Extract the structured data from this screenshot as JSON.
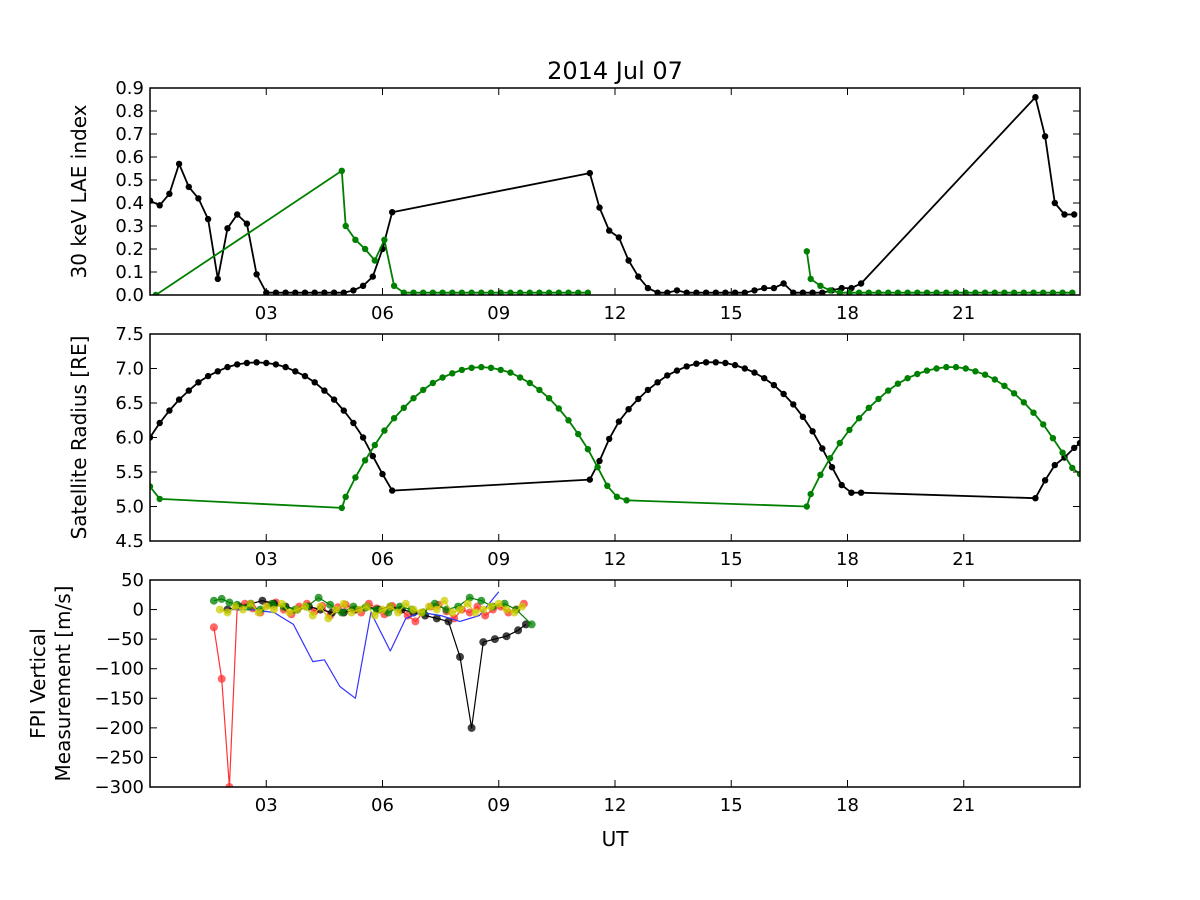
{
  "figure_title": "2014 Jul 07",
  "xlabel": "UT",
  "chart_data": [
    {
      "type": "line",
      "title": "2014 Jul 07",
      "xlabel": "",
      "ylabel": "30 keV LAE index",
      "xlim": [
        0,
        24
      ],
      "ylim": [
        0,
        0.9
      ],
      "grid": false,
      "x_ticks": [
        "03",
        "06",
        "09",
        "12",
        "15",
        "18",
        "21"
      ],
      "y_ticks": [
        "0.0",
        "0.1",
        "0.2",
        "0.3",
        "0.4",
        "0.5",
        "0.6",
        "0.7",
        "0.8",
        "0.9"
      ],
      "series": [
        {
          "color": "#000000",
          "markers": true,
          "x": [
            0.0,
            0.25,
            0.5,
            0.75,
            1.0,
            1.25,
            1.5,
            1.75,
            2.0,
            2.25,
            2.5,
            2.75,
            3.0,
            3.25,
            3.5,
            3.75,
            4.0,
            4.25,
            4.5,
            4.75,
            5.0,
            5.25,
            5.5,
            5.75,
            6.0,
            6.25,
            11.35,
            11.6,
            11.85,
            12.1,
            12.35,
            12.6,
            12.85,
            13.1,
            13.35,
            13.6,
            13.85,
            14.1,
            14.35,
            14.6,
            14.85,
            15.1,
            15.35,
            15.6,
            15.85,
            16.1,
            16.35,
            16.6,
            16.85,
            17.1,
            17.35,
            17.6,
            17.85,
            18.1,
            18.35,
            22.85,
            23.1,
            23.35,
            23.6,
            23.85
          ],
          "y": [
            0.41,
            0.39,
            0.44,
            0.57,
            0.47,
            0.42,
            0.33,
            0.07,
            0.29,
            0.35,
            0.31,
            0.09,
            0.01,
            0.01,
            0.01,
            0.01,
            0.01,
            0.01,
            0.01,
            0.01,
            0.01,
            0.02,
            0.04,
            0.08,
            0.2,
            0.36,
            0.53,
            0.38,
            0.28,
            0.25,
            0.15,
            0.08,
            0.03,
            0.01,
            0.01,
            0.02,
            0.01,
            0.01,
            0.01,
            0.01,
            0.01,
            0.01,
            0.01,
            0.02,
            0.03,
            0.03,
            0.05,
            0.01,
            0.01,
            0.01,
            0.01,
            0.02,
            0.03,
            0.03,
            0.05,
            0.86,
            0.69,
            0.4,
            0.35,
            0.35
          ]
        },
        {
          "color": "#008000",
          "markers": true,
          "x": [
            0.15,
            4.95,
            5.05,
            5.3,
            5.55,
            5.8,
            6.05,
            6.3,
            6.55,
            6.8,
            7.05,
            7.3,
            7.55,
            7.8,
            8.05,
            8.3,
            8.55,
            8.8,
            9.05,
            9.3,
            9.55,
            9.8,
            10.05,
            10.3,
            10.55,
            10.8,
            11.05,
            11.3
          ],
          "y": [
            0.0,
            0.54,
            0.3,
            0.24,
            0.2,
            0.15,
            0.24,
            0.04,
            0.01,
            0.01,
            0.01,
            0.01,
            0.01,
            0.01,
            0.01,
            0.01,
            0.01,
            0.01,
            0.01,
            0.01,
            0.01,
            0.01,
            0.01,
            0.01,
            0.01,
            0.01,
            0.01,
            0.01
          ]
        },
        {
          "color": "#008000",
          "markers": true,
          "x": [
            16.95,
            17.05,
            17.3,
            17.55,
            17.8,
            18.05,
            18.3,
            18.55,
            18.8,
            19.05,
            19.3,
            19.55,
            19.8,
            20.05,
            20.3,
            20.55,
            20.8,
            21.05,
            21.3,
            21.55,
            21.8,
            22.05,
            22.3,
            22.55,
            22.8,
            23.05,
            23.3,
            23.55,
            23.8
          ],
          "y": [
            0.19,
            0.07,
            0.04,
            0.02,
            0.01,
            0.01,
            0.01,
            0.01,
            0.01,
            0.01,
            0.01,
            0.01,
            0.01,
            0.01,
            0.01,
            0.01,
            0.01,
            0.01,
            0.01,
            0.01,
            0.01,
            0.01,
            0.01,
            0.01,
            0.01,
            0.01,
            0.01,
            0.01,
            0.01
          ]
        }
      ]
    },
    {
      "type": "line",
      "title": "",
      "xlabel": "",
      "ylabel": "Satellite Radius [RE]",
      "xlim": [
        0,
        24
      ],
      "ylim": [
        4.5,
        7.5
      ],
      "grid": false,
      "x_ticks": [
        "03",
        "06",
        "09",
        "12",
        "15",
        "18",
        "21"
      ],
      "y_ticks": [
        "4.5",
        "5.0",
        "5.5",
        "6.0",
        "6.5",
        "7.0",
        "7.5"
      ],
      "series": [
        {
          "color": "#000000",
          "markers": true,
          "x": [
            0.0,
            0.25,
            0.5,
            0.75,
            1.0,
            1.25,
            1.5,
            1.75,
            2.0,
            2.25,
            2.5,
            2.75,
            3.0,
            3.25,
            3.5,
            3.75,
            4.0,
            4.25,
            4.5,
            4.75,
            5.0,
            5.25,
            5.5,
            5.75,
            6.0,
            6.25,
            11.35,
            11.6,
            11.85,
            12.1,
            12.35,
            12.6,
            12.85,
            13.1,
            13.35,
            13.6,
            13.85,
            14.1,
            14.35,
            14.6,
            14.85,
            15.1,
            15.35,
            15.6,
            15.85,
            16.1,
            16.35,
            16.6,
            16.85,
            17.1,
            17.35,
            17.6,
            17.85,
            18.1,
            18.35,
            22.85,
            23.1,
            23.35,
            23.6,
            23.85,
            24.0
          ],
          "y": [
            6.0,
            6.21,
            6.39,
            6.55,
            6.68,
            6.8,
            6.89,
            6.96,
            7.02,
            7.06,
            7.08,
            7.09,
            7.08,
            7.06,
            7.02,
            6.96,
            6.89,
            6.8,
            6.68,
            6.55,
            6.39,
            6.21,
            6.0,
            5.73,
            5.47,
            5.23,
            5.39,
            5.66,
            5.98,
            6.23,
            6.41,
            6.56,
            6.69,
            6.8,
            6.9,
            6.97,
            7.03,
            7.07,
            7.09,
            7.09,
            7.08,
            7.05,
            7.0,
            6.94,
            6.86,
            6.76,
            6.63,
            6.48,
            6.3,
            6.09,
            5.84,
            5.57,
            5.31,
            5.2,
            5.2,
            5.12,
            5.38,
            5.6,
            5.71,
            5.85,
            5.92
          ]
        },
        {
          "color": "#008000",
          "markers": true,
          "x": [
            0.0,
            0.25,
            4.95,
            5.05,
            5.3,
            5.55,
            5.8,
            6.05,
            6.3,
            6.55,
            6.8,
            7.05,
            7.3,
            7.55,
            7.8,
            8.05,
            8.3,
            8.55,
            8.8,
            9.05,
            9.3,
            9.55,
            9.8,
            10.05,
            10.3,
            10.55,
            10.8,
            11.05,
            11.3,
            11.55,
            11.8,
            12.05,
            12.3,
            16.95,
            17.05,
            17.3,
            17.55,
            17.8,
            18.05,
            18.3,
            18.55,
            18.8,
            19.05,
            19.3,
            19.55,
            19.8,
            20.05,
            20.3,
            20.55,
            20.8,
            21.05,
            21.3,
            21.55,
            21.8,
            22.05,
            22.3,
            22.55,
            22.8,
            23.05,
            23.3,
            23.55,
            23.8,
            24.0
          ],
          "y": [
            5.29,
            5.11,
            4.98,
            5.14,
            5.42,
            5.67,
            5.89,
            6.1,
            6.28,
            6.43,
            6.57,
            6.69,
            6.79,
            6.87,
            6.93,
            6.98,
            7.01,
            7.02,
            7.01,
            6.98,
            6.94,
            6.87,
            6.79,
            6.69,
            6.57,
            6.42,
            6.25,
            6.05,
            5.83,
            5.57,
            5.3,
            5.14,
            5.09,
            5.0,
            5.18,
            5.46,
            5.7,
            5.92,
            6.11,
            6.28,
            6.43,
            6.56,
            6.68,
            6.78,
            6.86,
            6.92,
            6.97,
            7.0,
            7.02,
            7.02,
            7.0,
            6.96,
            6.91,
            6.84,
            6.75,
            6.64,
            6.51,
            6.36,
            6.19,
            5.99,
            5.78,
            5.56,
            5.47
          ]
        }
      ]
    },
    {
      "type": "line",
      "title": "",
      "xlabel": "UT",
      "ylabel": "FPI Vertical Measurement [m/s]",
      "xlim": [
        0,
        24
      ],
      "ylim": [
        -300,
        50
      ],
      "grid": false,
      "x_ticks": [
        "03",
        "06",
        "09",
        "12",
        "15",
        "18",
        "21"
      ],
      "y_ticks": [
        "−300",
        "−250",
        "−200",
        "−150",
        "−100",
        "−50",
        "0",
        "50"
      ],
      "series": [
        {
          "color": "#ff3333",
          "markers": true,
          "x": [
            1.65,
            1.85,
            2.05,
            2.25,
            2.45,
            2.65,
            2.85,
            3.05,
            3.25,
            3.45,
            3.65,
            3.85,
            4.05,
            4.25,
            4.45,
            4.65,
            4.85,
            5.05,
            5.25,
            5.45,
            5.65,
            5.85,
            6.05,
            6.25,
            6.45,
            6.65,
            6.85,
            7.05,
            7.25,
            7.45,
            7.65,
            7.85,
            8.05,
            8.25,
            8.45,
            8.65,
            8.85,
            9.05,
            9.25,
            9.45,
            9.65
          ],
          "y": [
            -30,
            -117,
            -300,
            5,
            10,
            2,
            -5,
            8,
            12,
            0,
            -8,
            5,
            10,
            -3,
            6,
            -10,
            4,
            8,
            0,
            -5,
            10,
            2,
            -8,
            6,
            0,
            -10,
            -20,
            -5,
            5,
            8,
            -3,
            -15,
            0,
            -5,
            5,
            -10,
            0,
            5,
            -5,
            0,
            10
          ]
        },
        {
          "color": "#000000",
          "markers": true,
          "x": [
            2.0,
            2.3,
            2.6,
            2.9,
            3.2,
            3.5,
            3.8,
            4.1,
            4.4,
            4.7,
            5.0,
            5.3,
            5.6,
            5.9,
            6.2,
            6.5,
            6.8,
            7.1,
            7.4,
            7.7,
            8.0,
            8.3,
            8.6,
            8.9,
            9.2,
            9.5,
            9.7
          ],
          "y": [
            0,
            5,
            10,
            15,
            10,
            5,
            0,
            5,
            0,
            -5,
            -5,
            0,
            5,
            0,
            5,
            0,
            -5,
            -10,
            -15,
            -20,
            -80,
            -200,
            -55,
            -50,
            -45,
            -35,
            -25
          ]
        },
        {
          "color": "#3333ff",
          "markers": false,
          "x": [
            2.0,
            2.6,
            3.2,
            3.7,
            4.2,
            4.5,
            4.9,
            5.3,
            5.7,
            6.2,
            6.6,
            7.0,
            7.5,
            8.0,
            8.5,
            9.0
          ],
          "y": [
            0,
            0,
            -5,
            -25,
            -88,
            -85,
            -130,
            -150,
            -5,
            -70,
            -15,
            -5,
            -10,
            -20,
            -10,
            30
          ]
        },
        {
          "color": "#008000",
          "markers": true,
          "x": [
            1.65,
            1.85,
            2.05,
            2.25,
            2.55,
            2.85,
            3.15,
            3.45,
            3.75,
            4.05,
            4.35,
            4.65,
            4.95,
            5.25,
            5.55,
            5.85,
            6.15,
            6.45,
            6.75,
            7.05,
            7.35,
            7.65,
            7.95,
            8.25,
            8.55,
            8.85,
            9.15,
            9.45,
            9.85
          ],
          "y": [
            15,
            18,
            12,
            8,
            5,
            0,
            10,
            5,
            0,
            5,
            20,
            8,
            -5,
            5,
            3,
            0,
            -5,
            5,
            0,
            -5,
            10,
            0,
            5,
            20,
            15,
            5,
            10,
            0,
            -25
          ]
        },
        {
          "color": "#cccc00",
          "markers": true,
          "x": [
            1.8,
            2.0,
            2.2,
            2.4,
            2.6,
            2.8,
            3.0,
            3.2,
            3.4,
            3.6,
            3.8,
            4.0,
            4.2,
            4.4,
            4.6,
            4.8,
            5.0,
            5.2,
            5.4,
            5.6,
            5.8,
            6.0,
            6.2,
            6.4,
            6.6,
            6.8,
            7.0,
            7.2,
            7.4,
            7.6,
            7.8,
            8.0,
            8.2,
            8.4,
            8.6,
            8.8,
            9.0,
            9.2,
            9.4,
            9.6
          ],
          "y": [
            0,
            -5,
            5,
            0,
            10,
            -5,
            5,
            0,
            10,
            -5,
            0,
            5,
            -10,
            5,
            -15,
            0,
            10,
            -5,
            0,
            5,
            -10,
            0,
            5,
            -5,
            10,
            0,
            -5,
            5,
            0,
            15,
            -5,
            0,
            10,
            -5,
            0,
            5,
            10,
            0,
            -5,
            5
          ]
        }
      ]
    }
  ]
}
